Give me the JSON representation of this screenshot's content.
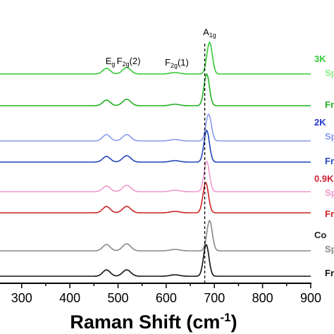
{
  "chart_data": {
    "type": "line",
    "xlabel_main": "Raman Shift (cm",
    "xlabel_sup": "-1",
    "xlabel_end": ")",
    "xlim": [
      255,
      900
    ],
    "xticks": [
      300,
      400,
      500,
      600,
      700,
      800,
      900
    ],
    "reference_line_x": 680,
    "peak_labels": [
      {
        "main": "E",
        "sub": "g",
        "rest": "",
        "x": 484
      },
      {
        "main": "F",
        "sub": "2g",
        "rest": "(2)",
        "x": 522
      },
      {
        "main": "F",
        "sub": "2g",
        "rest": "(1)",
        "x": 622
      },
      {
        "main": "A",
        "sub": "1g",
        "rest": "",
        "x": 690
      }
    ],
    "series": [
      {
        "label": "3K",
        "label2": "",
        "color": "#33cc33",
        "a1g_pos": 690,
        "a1g_amp": 45,
        "eg_amp": 8,
        "f2g2_amp": 9,
        "f2g1_amp": 2
      },
      {
        "label": "",
        "label2": "Sp",
        "color": "#88ee88",
        "a1g_pos": 690,
        "a1g_amp": 0,
        "eg_amp": 0,
        "f2g2_amp": 0,
        "f2g1_amp": 0
      },
      {
        "label": "Fr",
        "label2": "",
        "color": "#22b022",
        "a1g_pos": 684,
        "a1g_amp": 45,
        "eg_amp": 8,
        "f2g2_amp": 9,
        "f2g1_amp": 2
      },
      {
        "label": "2K",
        "label2": "",
        "color": "#2233cc",
        "a1g_pos": 0,
        "a1g_amp": 0,
        "eg_amp": 0,
        "f2g2_amp": 0,
        "f2g1_amp": 0
      },
      {
        "label": "",
        "label2": "Sp",
        "color": "#8899ee",
        "a1g_pos": 688,
        "a1g_amp": 38,
        "eg_amp": 9,
        "f2g2_amp": 9,
        "f2g1_amp": 2
      },
      {
        "label": "Fr",
        "label2": "",
        "color": "#2244bb",
        "a1g_pos": 684,
        "a1g_amp": 45,
        "eg_amp": 8,
        "f2g2_amp": 9,
        "f2g1_amp": 2
      },
      {
        "label": "0.9K",
        "label2": "",
        "color": "#cc2233",
        "a1g_pos": 0,
        "a1g_amp": 0,
        "eg_amp": 0,
        "f2g2_amp": 0,
        "f2g1_amp": 0
      },
      {
        "label": "",
        "label2": "Sp",
        "color": "#ee99cc",
        "a1g_pos": 684,
        "a1g_amp": 43,
        "eg_amp": 8,
        "f2g2_amp": 9,
        "f2g1_amp": 2
      },
      {
        "label": "Fr",
        "label2": "",
        "color": "#cc2222",
        "a1g_pos": 682,
        "a1g_amp": 43,
        "eg_amp": 9,
        "f2g2_amp": 9,
        "f2g1_amp": 2
      },
      {
        "label": "Co",
        "label2": "",
        "color": "#222222",
        "a1g_pos": 0,
        "a1g_amp": 0,
        "eg_amp": 0,
        "f2g2_amp": 0,
        "f2g1_amp": 0
      },
      {
        "label": "",
        "label2": "Sp",
        "color": "#888888",
        "a1g_pos": 690,
        "a1g_amp": 43,
        "eg_amp": 9,
        "f2g2_amp": 10,
        "f2g1_amp": 2
      },
      {
        "label": "Fr",
        "label2": "",
        "color": "#111111",
        "a1g_pos": 683,
        "a1g_amp": 45,
        "eg_amp": 9,
        "f2g2_amp": 9,
        "f2g1_amp": 2
      }
    ]
  }
}
